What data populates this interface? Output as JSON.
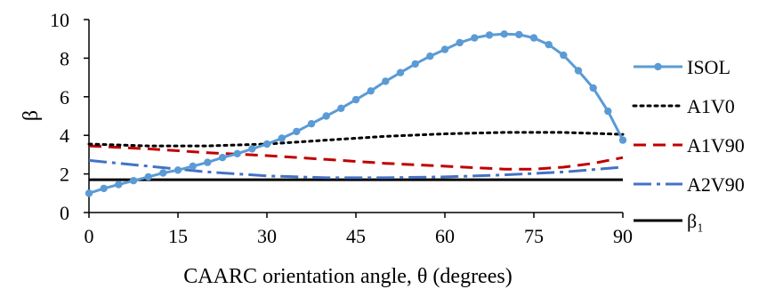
{
  "chart_data": {
    "type": "line",
    "xlabel": "CAARC orientation angle, θ (degrees)",
    "ylabel": "β",
    "xlim": [
      0,
      90
    ],
    "ylim": [
      0,
      10
    ],
    "xticks": [
      "0",
      "15",
      "30",
      "45",
      "60",
      "75",
      "90"
    ],
    "yticks": [
      "0",
      "2",
      "4",
      "6",
      "8",
      "10"
    ],
    "grid": false,
    "legend": "right",
    "series": [
      {
        "name": "ISOL",
        "color": "#5b9bd5",
        "style": "solid-markers",
        "x": [
          0,
          2.5,
          5,
          7.5,
          10,
          12.5,
          15,
          17.5,
          20,
          22.5,
          25,
          27.5,
          30,
          32.5,
          35,
          37.5,
          40,
          42.5,
          45,
          47.5,
          50,
          52.5,
          55,
          57.5,
          60,
          62.5,
          65,
          67.5,
          70,
          72.5,
          75,
          77.5,
          80,
          82.5,
          85,
          87.5,
          90
        ],
        "y": [
          1.0,
          1.25,
          1.45,
          1.65,
          1.85,
          2.05,
          2.2,
          2.4,
          2.6,
          2.85,
          3.05,
          3.3,
          3.55,
          3.85,
          4.2,
          4.6,
          5.0,
          5.4,
          5.85,
          6.3,
          6.8,
          7.25,
          7.7,
          8.1,
          8.45,
          8.8,
          9.05,
          9.2,
          9.25,
          9.22,
          9.05,
          8.7,
          8.15,
          7.35,
          6.45,
          5.25,
          3.75
        ]
      },
      {
        "name": "A1V0",
        "color": "#000000",
        "style": "dotted",
        "x": [
          0,
          10,
          20,
          30,
          40,
          50,
          60,
          70,
          80,
          90
        ],
        "y": [
          3.55,
          3.45,
          3.45,
          3.55,
          3.75,
          3.95,
          4.08,
          4.15,
          4.15,
          4.05
        ]
      },
      {
        "name": "A1V90",
        "color": "#c00000",
        "style": "dashed",
        "x": [
          0,
          10,
          20,
          30,
          40,
          50,
          60,
          70,
          75,
          80,
          85,
          90
        ],
        "y": [
          3.45,
          3.3,
          3.1,
          2.95,
          2.75,
          2.55,
          2.4,
          2.25,
          2.25,
          2.35,
          2.55,
          2.85
        ]
      },
      {
        "name": "A2V90",
        "color": "#4472c4",
        "style": "dash-dot",
        "x": [
          0,
          10,
          20,
          30,
          40,
          50,
          60,
          70,
          80,
          90
        ],
        "y": [
          2.7,
          2.4,
          2.1,
          1.9,
          1.8,
          1.8,
          1.85,
          1.95,
          2.1,
          2.35
        ]
      },
      {
        "name": "β₁",
        "color": "#000000",
        "style": "solid",
        "x": [
          0,
          90
        ],
        "y": [
          1.7,
          1.7
        ]
      }
    ]
  }
}
